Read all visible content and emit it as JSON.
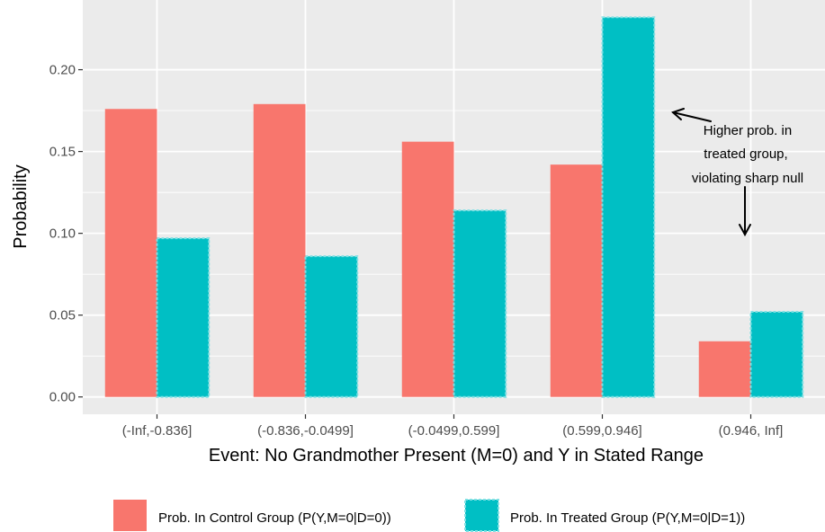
{
  "chart_data": {
    "type": "bar",
    "categories": [
      "(-Inf,-0.836]",
      "(-0.836,-0.0499]",
      "(-0.0499,0.599]",
      "(0.599,0.946]",
      "(0.946, Inf]"
    ],
    "series": [
      {
        "name": "Prob. In Control Group (P(Y,M=0|D=0))",
        "color": "#f8766d",
        "values": [
          0.176,
          0.179,
          0.156,
          0.142,
          0.034
        ]
      },
      {
        "name": "Prob. In Treated Group (P(Y,M=0|D=1))",
        "color": "#00bfc4",
        "values": [
          0.097,
          0.086,
          0.114,
          0.232,
          0.052
        ]
      }
    ],
    "xlabel": "Event: No Grandmother Present (M=0) and Y in Stated Range",
    "ylabel": "Probability",
    "ylim": [
      -0.0106,
      0.2426
    ],
    "yticks": [
      0.0,
      0.05,
      0.1,
      0.15,
      0.2
    ],
    "ytick_labels": [
      "0.00",
      "0.05",
      "0.10",
      "0.15",
      "0.20"
    ],
    "grid": true,
    "legend_position": "bottom",
    "annotation": {
      "lines": [
        "Higher prob. in",
        "treated group,",
        "violating sharp null"
      ]
    }
  },
  "style": {
    "panel_bg": "#ebebeb",
    "grid_color": "#ffffff",
    "tick_color": "#333333"
  }
}
